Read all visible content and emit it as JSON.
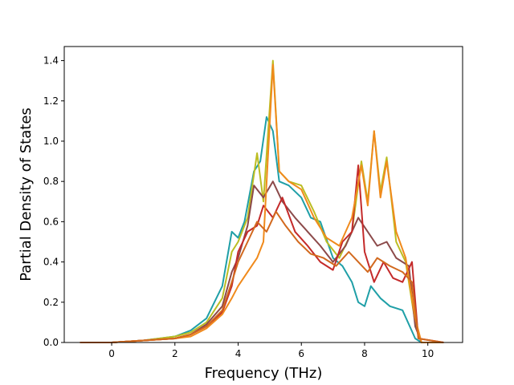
{
  "chart_data": {
    "type": "line",
    "title": "",
    "xlabel": "Frequency (THz)",
    "ylabel": "Partial Density of States",
    "xlim": [
      -1.5,
      11.1
    ],
    "ylim": [
      0.0,
      1.47
    ],
    "xticks": [
      0,
      2,
      4,
      6,
      8,
      10
    ],
    "yticks": [
      0.0,
      0.2,
      0.4,
      0.6,
      0.8,
      1.0,
      1.2,
      1.4
    ],
    "grid": false,
    "legend": "none",
    "series": [
      {
        "color": "#1f9fa7",
        "points": [
          [
            -1.0,
            0
          ],
          [
            0,
            0
          ],
          [
            1,
            0.01
          ],
          [
            2,
            0.03
          ],
          [
            2.5,
            0.06
          ],
          [
            3,
            0.12
          ],
          [
            3.5,
            0.28
          ],
          [
            3.8,
            0.55
          ],
          [
            4.0,
            0.52
          ],
          [
            4.2,
            0.6
          ],
          [
            4.5,
            0.85
          ],
          [
            4.7,
            0.9
          ],
          [
            4.9,
            1.12
          ],
          [
            5.1,
            1.05
          ],
          [
            5.3,
            0.8
          ],
          [
            5.6,
            0.78
          ],
          [
            6.0,
            0.72
          ],
          [
            6.3,
            0.62
          ],
          [
            6.6,
            0.6
          ],
          [
            7.0,
            0.42
          ],
          [
            7.3,
            0.38
          ],
          [
            7.6,
            0.3
          ],
          [
            7.8,
            0.2
          ],
          [
            8.0,
            0.18
          ],
          [
            8.2,
            0.28
          ],
          [
            8.5,
            0.22
          ],
          [
            8.8,
            0.18
          ],
          [
            9.2,
            0.16
          ],
          [
            9.6,
            0.02
          ],
          [
            9.8,
            0
          ],
          [
            10.5,
            0
          ]
        ]
      },
      {
        "color": "#bcbd22",
        "points": [
          [
            -1.0,
            0
          ],
          [
            0,
            0
          ],
          [
            1,
            0.01
          ],
          [
            2,
            0.03
          ],
          [
            2.5,
            0.05
          ],
          [
            3,
            0.1
          ],
          [
            3.5,
            0.22
          ],
          [
            3.8,
            0.45
          ],
          [
            4.0,
            0.5
          ],
          [
            4.3,
            0.62
          ],
          [
            4.6,
            0.94
          ],
          [
            4.8,
            0.7
          ],
          [
            5.1,
            1.4
          ],
          [
            5.3,
            0.85
          ],
          [
            5.6,
            0.8
          ],
          [
            6.0,
            0.78
          ],
          [
            6.4,
            0.65
          ],
          [
            6.8,
            0.5
          ],
          [
            7.2,
            0.42
          ],
          [
            7.6,
            0.55
          ],
          [
            7.9,
            0.9
          ],
          [
            8.1,
            0.7
          ],
          [
            8.3,
            1.05
          ],
          [
            8.5,
            0.75
          ],
          [
            8.7,
            0.92
          ],
          [
            9.0,
            0.5
          ],
          [
            9.3,
            0.4
          ],
          [
            9.6,
            0.1
          ],
          [
            9.8,
            0
          ],
          [
            10.5,
            0
          ]
        ]
      },
      {
        "color": "#8c4a4a",
        "points": [
          [
            -1.0,
            0
          ],
          [
            0,
            0
          ],
          [
            1,
            0.01
          ],
          [
            2,
            0.02
          ],
          [
            2.5,
            0.04
          ],
          [
            3,
            0.09
          ],
          [
            3.5,
            0.18
          ],
          [
            3.8,
            0.35
          ],
          [
            4.0,
            0.42
          ],
          [
            4.3,
            0.58
          ],
          [
            4.5,
            0.78
          ],
          [
            4.8,
            0.72
          ],
          [
            5.1,
            0.8
          ],
          [
            5.4,
            0.7
          ],
          [
            5.8,
            0.62
          ],
          [
            6.2,
            0.55
          ],
          [
            6.6,
            0.48
          ],
          [
            7.0,
            0.4
          ],
          [
            7.4,
            0.48
          ],
          [
            7.8,
            0.62
          ],
          [
            8.1,
            0.55
          ],
          [
            8.4,
            0.48
          ],
          [
            8.7,
            0.5
          ],
          [
            9.0,
            0.42
          ],
          [
            9.4,
            0.38
          ],
          [
            9.6,
            0.08
          ],
          [
            9.8,
            0
          ],
          [
            10.5,
            0
          ]
        ]
      },
      {
        "color": "#c42a2a",
        "points": [
          [
            -1.0,
            0
          ],
          [
            0,
            0
          ],
          [
            1,
            0.01
          ],
          [
            2,
            0.02
          ],
          [
            2.5,
            0.04
          ],
          [
            3,
            0.08
          ],
          [
            3.5,
            0.15
          ],
          [
            3.8,
            0.28
          ],
          [
            4.0,
            0.45
          ],
          [
            4.3,
            0.55
          ],
          [
            4.6,
            0.58
          ],
          [
            4.8,
            0.68
          ],
          [
            5.1,
            0.62
          ],
          [
            5.4,
            0.72
          ],
          [
            5.8,
            0.55
          ],
          [
            6.2,
            0.48
          ],
          [
            6.6,
            0.4
          ],
          [
            7.0,
            0.36
          ],
          [
            7.3,
            0.5
          ],
          [
            7.6,
            0.55
          ],
          [
            7.8,
            0.88
          ],
          [
            8.0,
            0.45
          ],
          [
            8.3,
            0.3
          ],
          [
            8.6,
            0.4
          ],
          [
            8.9,
            0.32
          ],
          [
            9.2,
            0.3
          ],
          [
            9.5,
            0.4
          ],
          [
            9.7,
            0.02
          ],
          [
            10.5,
            0
          ]
        ]
      },
      {
        "color": "#f08a1c",
        "points": [
          [
            -1.0,
            0
          ],
          [
            0,
            0
          ],
          [
            1,
            0.01
          ],
          [
            2,
            0.02
          ],
          [
            2.5,
            0.03
          ],
          [
            3,
            0.07
          ],
          [
            3.5,
            0.14
          ],
          [
            3.8,
            0.22
          ],
          [
            4.0,
            0.28
          ],
          [
            4.3,
            0.35
          ],
          [
            4.6,
            0.42
          ],
          [
            4.8,
            0.5
          ],
          [
            5.1,
            1.38
          ],
          [
            5.3,
            0.85
          ],
          [
            5.6,
            0.8
          ],
          [
            6.0,
            0.76
          ],
          [
            6.4,
            0.62
          ],
          [
            6.8,
            0.52
          ],
          [
            7.2,
            0.48
          ],
          [
            7.6,
            0.62
          ],
          [
            7.9,
            0.88
          ],
          [
            8.1,
            0.68
          ],
          [
            8.3,
            1.05
          ],
          [
            8.5,
            0.72
          ],
          [
            8.7,
            0.9
          ],
          [
            9.0,
            0.55
          ],
          [
            9.3,
            0.42
          ],
          [
            9.6,
            0.12
          ],
          [
            9.8,
            0
          ],
          [
            10.5,
            0
          ]
        ]
      },
      {
        "color": "#d2691e",
        "points": [
          [
            -1.0,
            0
          ],
          [
            0,
            0
          ],
          [
            1,
            0.01
          ],
          [
            2,
            0.02
          ],
          [
            2.5,
            0.04
          ],
          [
            3,
            0.08
          ],
          [
            3.5,
            0.16
          ],
          [
            3.8,
            0.3
          ],
          [
            4.0,
            0.4
          ],
          [
            4.3,
            0.5
          ],
          [
            4.6,
            0.6
          ],
          [
            4.9,
            0.55
          ],
          [
            5.2,
            0.65
          ],
          [
            5.5,
            0.58
          ],
          [
            5.9,
            0.5
          ],
          [
            6.3,
            0.44
          ],
          [
            6.7,
            0.42
          ],
          [
            7.1,
            0.38
          ],
          [
            7.5,
            0.45
          ],
          [
            7.8,
            0.4
          ],
          [
            8.1,
            0.35
          ],
          [
            8.4,
            0.42
          ],
          [
            8.8,
            0.38
          ],
          [
            9.2,
            0.35
          ],
          [
            9.5,
            0.3
          ],
          [
            9.7,
            0.02
          ],
          [
            10.5,
            0
          ]
        ]
      }
    ]
  }
}
